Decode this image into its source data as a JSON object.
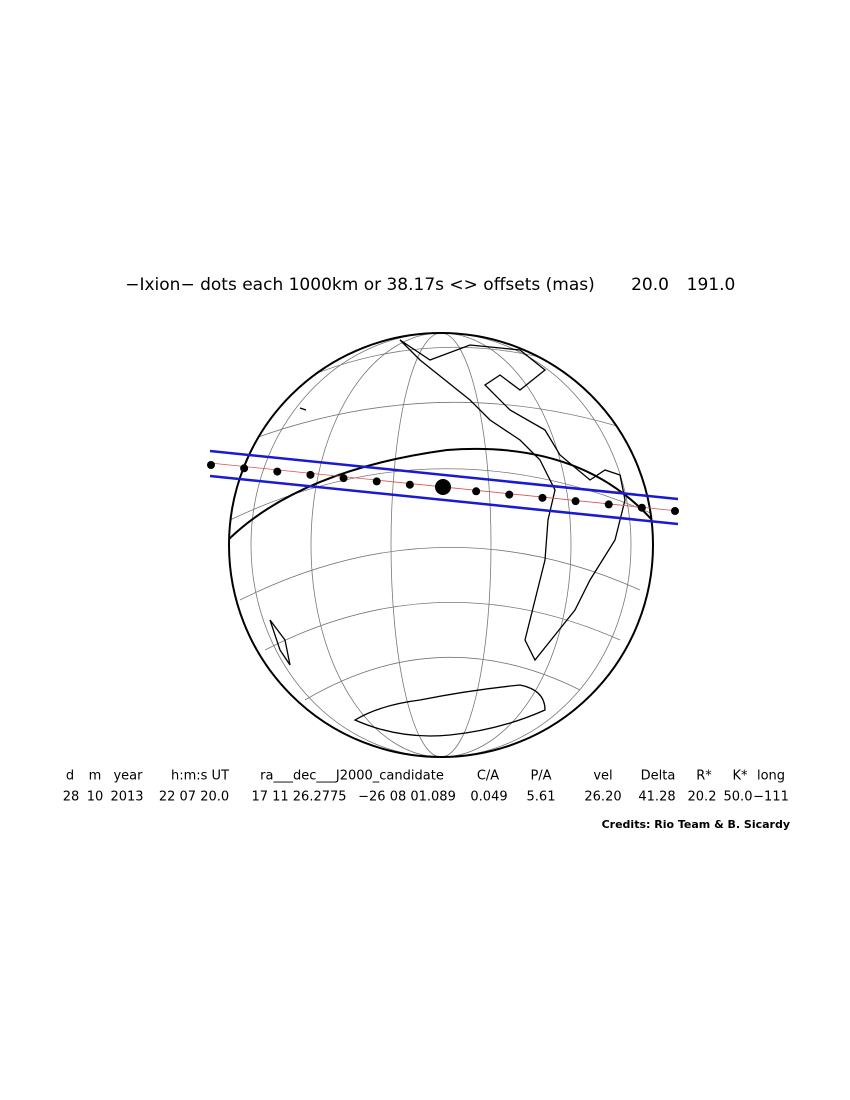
{
  "title": {
    "text": "−Ixion− dots each 1000km or 38.17s <> offsets (mas)",
    "offset_ra": "20.0",
    "offset_dec": "191.0"
  },
  "table": {
    "headers": [
      "d",
      "m",
      "year",
      "h:m:s UT",
      "ra___dec___J2000_candidate",
      "C/A",
      "P/A",
      "vel",
      "Delta",
      "R*",
      "K*",
      "long"
    ],
    "rows": [
      [
        "28",
        "10",
        "2013",
        "22 07 20.0",
        "17 11 26.2775",
        "−26 08 01.089",
        "0.049",
        "5.61",
        "26.20",
        "41.28",
        "20.2",
        "50.0",
        "−111"
      ]
    ]
  },
  "credits": "Credits: Rio Team & B. Sicardy"
}
